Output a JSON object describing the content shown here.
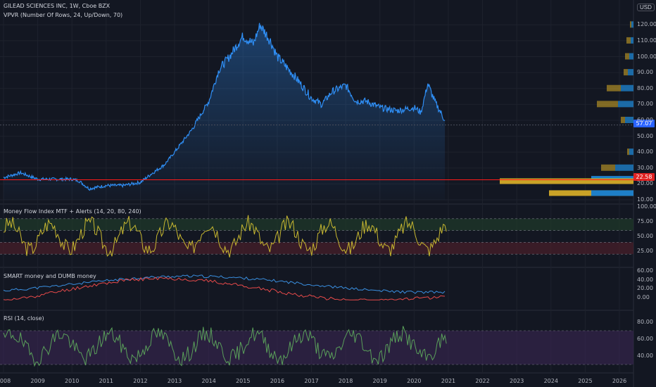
{
  "header": {
    "symbol_line": "GILEAD SCIENCES INC, 1W, Cboe BZX",
    "vpvr_line": "VPVR (Number Of Rows, 24, Up/Down, 70)"
  },
  "currency": "USD",
  "indicators": {
    "mfi": "Money Flow Index MTF + Alerts (14, 20, 80, 240)",
    "smart": "SMART money and DUMB money",
    "rsi": "RSI (14, close)"
  },
  "badges": {
    "last_price": "57.07",
    "support": "22.58"
  },
  "colors": {
    "price_line": "#2f8ef4",
    "support": "#ff1a1a",
    "mfi": "#c8b830",
    "smart": "#3a8fe0",
    "dumb": "#e84a4a",
    "rsi": "#5aa05a",
    "rsi_band": "#3a2654",
    "vol_up": "#1e7fc8",
    "vol_down": "#c9a227"
  },
  "chart_data": [
    {
      "type": "area",
      "x_labels": [
        "2008",
        "2009",
        "2010",
        "2011",
        "2012",
        "2013",
        "2014",
        "2015",
        "2016",
        "2017",
        "2018",
        "2019",
        "2020",
        "2021",
        "2022",
        "2023",
        "2024",
        "2025",
        "2026"
      ],
      "y_ticks": [
        "120.00",
        "110.00",
        "100.00",
        "90.00",
        "80.00",
        "70.00",
        "60.00",
        "50.00",
        "40.00",
        "30.00",
        "20.00",
        "10.00"
      ],
      "ylim": [
        10,
        125
      ],
      "series": [
        {
          "x": [
            2008.0,
            2008.5,
            2009.0,
            2009.5,
            2010.0,
            2010.2,
            2010.5,
            2011.0,
            2011.5,
            2012.0,
            2012.3,
            2012.7,
            2013.0,
            2013.5,
            2014.0,
            2014.3,
            2014.6,
            2015.0,
            2015.3,
            2015.5,
            2015.8,
            2016.0,
            2016.5,
            2017.0,
            2017.3,
            2017.6,
            2018.0,
            2018.3,
            2018.6,
            2019.0,
            2019.5,
            2020.0,
            2020.2,
            2020.4,
            2020.6,
            2020.9
          ],
          "y": [
            24,
            27,
            23,
            23,
            23,
            22,
            17,
            19,
            19,
            21,
            26,
            32,
            40,
            54,
            72,
            92,
            100,
            113,
            108,
            120,
            110,
            100,
            88,
            74,
            70,
            78,
            82,
            72,
            72,
            68,
            66,
            68,
            65,
            83,
            72,
            60
          ]
        }
      ],
      "horizontal_line": 22.58,
      "last_value": 57.07
    },
    {
      "type": "line",
      "title": "Money Flow Index MTF + Alerts (14, 20, 80, 240)",
      "y_ticks": [
        "100.00",
        "75.00",
        "50.00",
        "25.00"
      ],
      "ylim": [
        0,
        100
      ],
      "levels": [
        80,
        60,
        40,
        20
      ]
    },
    {
      "type": "line",
      "title": "SMART money and DUMB money",
      "y_ticks": [
        "60.00",
        "40.00",
        "20.00",
        "0.00"
      ]
    },
    {
      "type": "line",
      "title": "RSI (14, close)",
      "y_ticks": [
        "80.00",
        "60.00",
        "40.00"
      ],
      "levels": [
        70,
        30
      ]
    }
  ]
}
